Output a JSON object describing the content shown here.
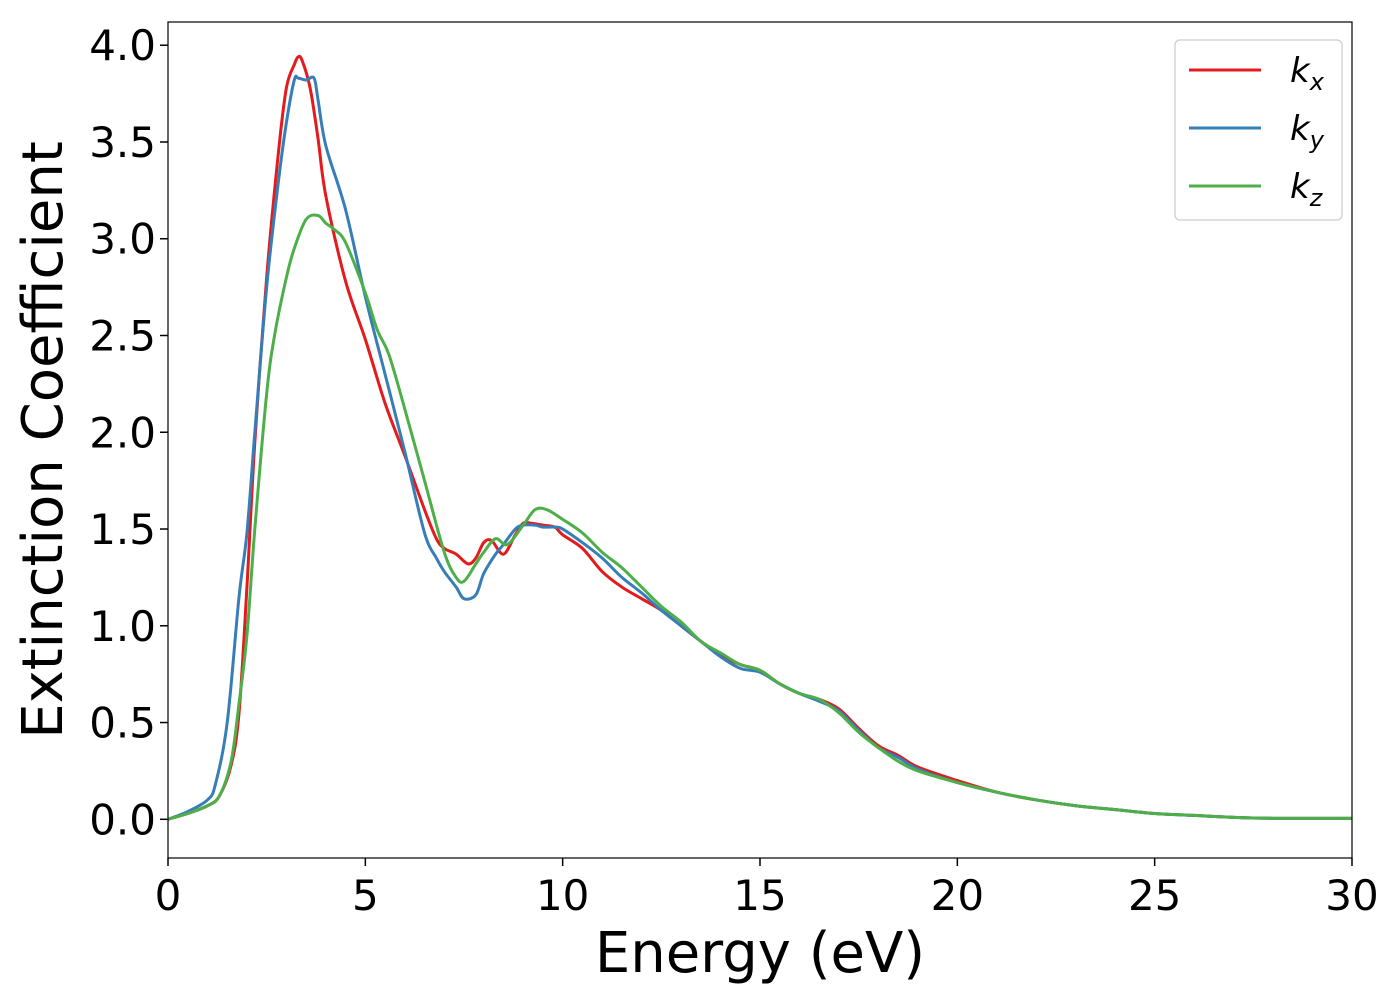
{
  "chart_data": {
    "type": "line",
    "title": "",
    "xlabel": "Energy (eV)",
    "ylabel": "Extinction Coefficient",
    "xlim": [
      0,
      30
    ],
    "ylim": [
      -0.2,
      4.12
    ],
    "xticks": [
      0,
      5,
      10,
      15,
      20,
      25,
      30
    ],
    "xtick_labels": [
      "0",
      "5",
      "10",
      "15",
      "20",
      "25",
      "30"
    ],
    "yticks": [
      0.0,
      0.5,
      1.0,
      1.5,
      2.0,
      2.5,
      3.0,
      3.5,
      4.0
    ],
    "ytick_labels": [
      "0.0",
      "0.5",
      "1.0",
      "1.5",
      "2.0",
      "2.5",
      "3.0",
      "3.5",
      "4.0"
    ],
    "grid": false,
    "legend_position": "top-right",
    "series": [
      {
        "name": "k",
        "subscript": "x",
        "color": "#e41a1c",
        "x": [
          0,
          0.5,
          1.0,
          1.3,
          1.6,
          1.8,
          2.0,
          2.2,
          2.5,
          2.8,
          3.0,
          3.2,
          3.3,
          3.4,
          3.6,
          3.8,
          4.0,
          4.5,
          5.0,
          5.5,
          6.0,
          6.5,
          6.8,
          7.0,
          7.3,
          7.6,
          7.8,
          8.0,
          8.2,
          8.5,
          8.8,
          9.0,
          9.2,
          9.5,
          9.8,
          10.0,
          10.5,
          11.0,
          11.5,
          12.0,
          12.5,
          13.0,
          13.5,
          14.0,
          14.5,
          15.0,
          15.5,
          16.0,
          16.5,
          17.0,
          17.5,
          18.0,
          18.5,
          19.0,
          20.0,
          21.0,
          22.0,
          23.0,
          24.0,
          25.0,
          26.0,
          27.0,
          28.0,
          29.0,
          30.0
        ],
        "values": [
          0.0,
          0.03,
          0.07,
          0.12,
          0.28,
          0.55,
          1.2,
          1.95,
          2.8,
          3.45,
          3.78,
          3.9,
          3.94,
          3.92,
          3.78,
          3.52,
          3.22,
          2.78,
          2.48,
          2.15,
          1.88,
          1.6,
          1.45,
          1.4,
          1.37,
          1.32,
          1.35,
          1.43,
          1.44,
          1.37,
          1.47,
          1.53,
          1.53,
          1.52,
          1.51,
          1.47,
          1.4,
          1.28,
          1.2,
          1.14,
          1.08,
          1.0,
          0.92,
          0.85,
          0.8,
          0.77,
          0.7,
          0.65,
          0.62,
          0.57,
          0.47,
          0.38,
          0.33,
          0.27,
          0.2,
          0.14,
          0.1,
          0.07,
          0.05,
          0.03,
          0.02,
          0.01,
          0.005,
          0.005,
          0.005
        ]
      },
      {
        "name": "k",
        "subscript": "y",
        "color": "#377eb8",
        "x": [
          0,
          0.5,
          1.0,
          1.2,
          1.5,
          1.8,
          2.0,
          2.2,
          2.5,
          2.8,
          3.0,
          3.2,
          3.3,
          3.5,
          3.7,
          3.8,
          4.0,
          4.5,
          5.0,
          5.5,
          6.0,
          6.5,
          6.8,
          7.0,
          7.3,
          7.5,
          7.8,
          8.0,
          8.3,
          8.5,
          8.8,
          9.0,
          9.3,
          9.5,
          9.8,
          10.0,
          10.5,
          11.0,
          11.5,
          12.0,
          12.5,
          13.0,
          13.5,
          14.0,
          14.5,
          15.0,
          15.5,
          16.0,
          16.5,
          17.0,
          17.5,
          18.0,
          18.5,
          19.0,
          20.0,
          21.0,
          22.0,
          23.0,
          24.0,
          25.0,
          26.0,
          27.0,
          28.0,
          29.0,
          30.0
        ],
        "values": [
          0.0,
          0.04,
          0.1,
          0.18,
          0.5,
          1.15,
          1.48,
          2.0,
          2.75,
          3.3,
          3.6,
          3.82,
          3.83,
          3.82,
          3.83,
          3.72,
          3.48,
          3.15,
          2.7,
          2.3,
          1.9,
          1.48,
          1.35,
          1.28,
          1.2,
          1.14,
          1.16,
          1.27,
          1.37,
          1.42,
          1.5,
          1.52,
          1.52,
          1.51,
          1.51,
          1.5,
          1.43,
          1.35,
          1.25,
          1.17,
          1.08,
          1.0,
          0.92,
          0.84,
          0.78,
          0.76,
          0.7,
          0.65,
          0.61,
          0.56,
          0.46,
          0.37,
          0.32,
          0.26,
          0.19,
          0.14,
          0.1,
          0.07,
          0.05,
          0.03,
          0.02,
          0.01,
          0.005,
          0.005,
          0.005
        ]
      },
      {
        "name": "k",
        "subscript": "z",
        "color": "#4daf4a",
        "x": [
          0,
          0.5,
          1.0,
          1.3,
          1.6,
          1.8,
          2.0,
          2.2,
          2.5,
          2.7,
          3.0,
          3.2,
          3.5,
          3.8,
          4.0,
          4.2,
          4.5,
          5.0,
          5.3,
          5.6,
          6.0,
          6.5,
          7.0,
          7.3,
          7.5,
          7.8,
          8.0,
          8.3,
          8.6,
          9.0,
          9.3,
          9.6,
          10.0,
          10.5,
          11.0,
          11.5,
          12.0,
          12.5,
          13.0,
          13.5,
          14.0,
          14.5,
          15.0,
          15.5,
          16.0,
          16.5,
          17.0,
          17.5,
          18.0,
          18.5,
          19.0,
          20.0,
          21.0,
          22.0,
          23.0,
          24.0,
          25.0,
          26.0,
          27.0,
          28.0,
          29.0,
          30.0
        ],
        "values": [
          0.0,
          0.03,
          0.07,
          0.12,
          0.3,
          0.6,
          0.95,
          1.5,
          2.2,
          2.5,
          2.8,
          2.95,
          3.1,
          3.12,
          3.08,
          3.05,
          2.98,
          2.72,
          2.53,
          2.4,
          2.12,
          1.75,
          1.38,
          1.25,
          1.23,
          1.32,
          1.38,
          1.45,
          1.42,
          1.52,
          1.6,
          1.6,
          1.55,
          1.48,
          1.38,
          1.3,
          1.2,
          1.1,
          1.02,
          0.92,
          0.86,
          0.8,
          0.77,
          0.7,
          0.65,
          0.62,
          0.55,
          0.45,
          0.37,
          0.3,
          0.25,
          0.19,
          0.14,
          0.1,
          0.07,
          0.05,
          0.03,
          0.02,
          0.01,
          0.005,
          0.005,
          0.005
        ]
      }
    ]
  }
}
